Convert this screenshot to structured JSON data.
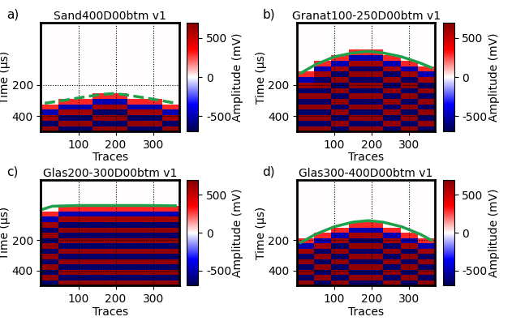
{
  "chart_data": [
    {
      "type": "heatmap",
      "title": "Sand400D00btm v1",
      "annotations": [
        "a)"
      ],
      "xlabel": "Traces",
      "ylabel": "Time (μs)",
      "xlim": [
        0,
        370
      ],
      "ylim": [
        500,
        -200
      ],
      "xticks": [
        100,
        200,
        300
      ],
      "yticks": [
        200,
        400
      ],
      "grid": true,
      "x_edges": [
        0,
        46,
        92,
        139,
        185,
        231,
        277,
        324,
        370
      ],
      "y_edges": [
        -200,
        -165,
        -130,
        -95,
        -60,
        -25,
        10,
        45,
        80,
        115,
        150,
        185,
        220,
        255,
        290,
        325,
        360,
        395,
        430,
        465,
        500
      ],
      "cells": [
        [
          0,
          0,
          0,
          0,
          0,
          0,
          0,
          0
        ],
        [
          0,
          0,
          0,
          0,
          0,
          0,
          0,
          0
        ],
        [
          0,
          0,
          0,
          0,
          0,
          0,
          0,
          0
        ],
        [
          0,
          0,
          0,
          0,
          0,
          0,
          0,
          0
        ],
        [
          0,
          0,
          0,
          0,
          0,
          0,
          0,
          0
        ],
        [
          0,
          0,
          0,
          0,
          0,
          0,
          0,
          0
        ],
        [
          0,
          0,
          0,
          0,
          0,
          0,
          0,
          0
        ],
        [
          0,
          0,
          0,
          0,
          0,
          0,
          0,
          0
        ],
        [
          0,
          0,
          0,
          0,
          0,
          0,
          0,
          0
        ],
        [
          0,
          0,
          0,
          0,
          0,
          0,
          0,
          0
        ],
        [
          0,
          0,
          0,
          0,
          0,
          0,
          0,
          0
        ],
        [
          0,
          0,
          0,
          0,
          0,
          0,
          0,
          0
        ],
        [
          0,
          0,
          0,
          0,
          0,
          0,
          0,
          0
        ],
        [
          0,
          0,
          0,
          300,
          300,
          0,
          0,
          0
        ],
        [
          0,
          300,
          300,
          -500,
          -500,
          300,
          300,
          0
        ],
        [
          300,
          -500,
          -500,
          600,
          600,
          -500,
          -500,
          300
        ],
        [
          -500,
          600,
          600,
          -650,
          -650,
          600,
          600,
          -500
        ],
        [
          600,
          -650,
          -650,
          650,
          650,
          -650,
          -650,
          600
        ],
        [
          -650,
          650,
          650,
          -650,
          -650,
          650,
          650,
          -650
        ],
        [
          650,
          -650,
          -650,
          650,
          650,
          -650,
          -650,
          650
        ]
      ],
      "colorbar": {
        "label": "Amplitude (mV)",
        "range": [
          -700,
          700
        ],
        "ticks": [
          -500,
          0,
          500
        ]
      },
      "series": [
        {
          "type": "line",
          "color": "#1fa04a",
          "line_style": "dashed",
          "x": [
            10,
            60,
            110,
            160,
            190,
            220,
            270,
            320,
            360
          ],
          "values": [
            318,
            300,
            280,
            262,
            256,
            262,
            280,
            300,
            318
          ]
        }
      ]
    },
    {
      "type": "heatmap",
      "title": "Granat100-250D00btm v1",
      "annotations": [
        "b)"
      ],
      "xlabel": "Traces",
      "ylabel": "Time (μs)",
      "xlim": [
        0,
        370
      ],
      "ylim": [
        500,
        -200
      ],
      "xticks": [
        100,
        200,
        300
      ],
      "yticks": [
        200,
        400
      ],
      "grid": true,
      "x_edges": [
        0,
        46,
        92,
        139,
        185,
        231,
        277,
        324,
        370
      ],
      "y_edges": [
        -200,
        -165,
        -130,
        -95,
        -60,
        -25,
        10,
        45,
        80,
        115,
        150,
        185,
        220,
        255,
        290,
        325,
        360,
        395,
        430,
        465,
        500
      ],
      "cells": [
        [
          0,
          0,
          0,
          0,
          0,
          0,
          0,
          0
        ],
        [
          0,
          0,
          0,
          0,
          0,
          0,
          0,
          0
        ],
        [
          0,
          0,
          0,
          0,
          0,
          0,
          0,
          0
        ],
        [
          0,
          0,
          0,
          0,
          0,
          0,
          0,
          0
        ],
        [
          0,
          0,
          0,
          0,
          0,
          0,
          0,
          0
        ],
        [
          0,
          0,
          0,
          300,
          300,
          0,
          0,
          0
        ],
        [
          0,
          0,
          300,
          -500,
          -500,
          300,
          0,
          0
        ],
        [
          0,
          300,
          -500,
          600,
          600,
          -500,
          300,
          0
        ],
        [
          0,
          -500,
          600,
          -650,
          -650,
          600,
          -500,
          300
        ],
        [
          300,
          600,
          -650,
          650,
          650,
          -650,
          600,
          -500
        ],
        [
          -500,
          -650,
          650,
          -650,
          -650,
          650,
          -650,
          600
        ],
        [
          600,
          650,
          -650,
          650,
          650,
          -650,
          650,
          -650
        ],
        [
          -650,
          -650,
          650,
          -650,
          -650,
          650,
          -650,
          650
        ],
        [
          650,
          650,
          -650,
          650,
          650,
          -650,
          650,
          -650
        ],
        [
          -650,
          -650,
          650,
          -650,
          -650,
          650,
          -650,
          650
        ],
        [
          650,
          650,
          -650,
          650,
          650,
          -650,
          650,
          -650
        ],
        [
          -650,
          -650,
          650,
          -650,
          -650,
          650,
          -650,
          650
        ],
        [
          650,
          650,
          -650,
          650,
          650,
          -650,
          650,
          -650
        ],
        [
          -650,
          -650,
          650,
          -650,
          -650,
          650,
          -650,
          650
        ],
        [
          650,
          650,
          -650,
          650,
          650,
          -650,
          650,
          -650
        ]
      ],
      "colorbar": {
        "label": "Amplitude (mV)",
        "range": [
          -700,
          700
        ],
        "ticks": [
          -500,
          0,
          500
        ]
      },
      "series": [
        {
          "type": "line",
          "color": "#1fa04a",
          "line_style": "solid",
          "x": [
            10,
            50,
            100,
            150,
            190,
            230,
            280,
            330,
            360
          ],
          "values": [
            125,
            70,
            20,
            -5,
            -15,
            -5,
            20,
            60,
            90
          ]
        }
      ]
    },
    {
      "type": "heatmap",
      "title": "Glas200-300D00btm v1",
      "annotations": [
        "c)"
      ],
      "xlabel": "Traces",
      "ylabel": "Time (μs)",
      "xlim": [
        0,
        370
      ],
      "ylim": [
        500,
        -200
      ],
      "xticks": [
        100,
        200,
        300
      ],
      "yticks": [
        200,
        400
      ],
      "grid": true,
      "x_edges": [
        0,
        46,
        92,
        139,
        185,
        231,
        277,
        324,
        370
      ],
      "y_edges": [
        -200,
        -165,
        -130,
        -95,
        -60,
        -25,
        10,
        45,
        80,
        115,
        150,
        185,
        220,
        255,
        290,
        325,
        360,
        395,
        430,
        465,
        500
      ],
      "cells": [
        [
          0,
          0,
          0,
          0,
          0,
          0,
          0,
          0
        ],
        [
          0,
          0,
          0,
          0,
          0,
          0,
          0,
          0
        ],
        [
          0,
          0,
          0,
          0,
          0,
          0,
          0,
          0
        ],
        [
          0,
          0,
          0,
          0,
          0,
          0,
          0,
          0
        ],
        [
          0,
          0,
          0,
          0,
          0,
          0,
          0,
          0
        ],
        [
          0,
          300,
          300,
          300,
          300,
          300,
          300,
          300
        ],
        [
          300,
          -500,
          -500,
          -500,
          -500,
          -500,
          -500,
          -500
        ],
        [
          -500,
          600,
          600,
          600,
          600,
          600,
          600,
          600
        ],
        [
          600,
          -650,
          -650,
          -650,
          -650,
          -650,
          -650,
          -650
        ],
        [
          -650,
          650,
          650,
          650,
          650,
          650,
          650,
          650
        ],
        [
          650,
          -650,
          -650,
          -650,
          -650,
          -650,
          -650,
          -650
        ],
        [
          -650,
          650,
          650,
          650,
          650,
          650,
          650,
          650
        ],
        [
          650,
          -650,
          -650,
          -650,
          -650,
          -650,
          -650,
          -650
        ],
        [
          -650,
          650,
          650,
          650,
          650,
          650,
          650,
          650
        ],
        [
          650,
          -650,
          -650,
          -650,
          -650,
          -650,
          -650,
          -650
        ],
        [
          -650,
          650,
          650,
          650,
          650,
          650,
          650,
          650
        ],
        [
          650,
          -650,
          -650,
          -650,
          -650,
          -650,
          -650,
          -650
        ],
        [
          -650,
          650,
          650,
          650,
          650,
          650,
          650,
          650
        ],
        [
          650,
          -650,
          -650,
          -650,
          -650,
          -650,
          -650,
          -650
        ],
        [
          -650,
          650,
          650,
          650,
          650,
          650,
          650,
          650
        ]
      ],
      "colorbar": {
        "label": "Amplitude (mV)",
        "range": [
          -700,
          700
        ],
        "ticks": [
          -500,
          0,
          500
        ]
      },
      "series": [
        {
          "type": "line",
          "color": "#1fa04a",
          "line_style": "solid",
          "x": [
            5,
            30,
            100,
            190,
            280,
            360
          ],
          "values": [
            -5,
            -25,
            -30,
            -30,
            -30,
            -28
          ]
        }
      ]
    },
    {
      "type": "heatmap",
      "title": "Glas300-400D00btm v1",
      "annotations": [
        "d)"
      ],
      "xlabel": "Traces",
      "ylabel": "Time (μs)",
      "xlim": [
        0,
        370
      ],
      "ylim": [
        500,
        -200
      ],
      "xticks": [
        100,
        200,
        300
      ],
      "yticks": [
        200,
        400
      ],
      "grid": true,
      "x_edges": [
        0,
        46,
        92,
        139,
        185,
        231,
        277,
        324,
        370
      ],
      "y_edges": [
        -200,
        -165,
        -130,
        -95,
        -60,
        -25,
        10,
        45,
        80,
        115,
        150,
        185,
        220,
        255,
        290,
        325,
        360,
        395,
        430,
        465,
        500
      ],
      "cells": [
        [
          0,
          0,
          0,
          0,
          0,
          0,
          0,
          0
        ],
        [
          0,
          0,
          0,
          0,
          0,
          0,
          0,
          0
        ],
        [
          0,
          0,
          0,
          0,
          0,
          0,
          0,
          0
        ],
        [
          0,
          0,
          0,
          0,
          0,
          0,
          0,
          0
        ],
        [
          0,
          0,
          0,
          0,
          0,
          0,
          0,
          0
        ],
        [
          0,
          0,
          0,
          0,
          0,
          0,
          0,
          0
        ],
        [
          0,
          0,
          0,
          0,
          0,
          0,
          0,
          0
        ],
        [
          0,
          0,
          0,
          0,
          0,
          0,
          0,
          0
        ],
        [
          0,
          0,
          0,
          300,
          300,
          0,
          0,
          0
        ],
        [
          0,
          0,
          300,
          -500,
          -500,
          300,
          0,
          0
        ],
        [
          0,
          300,
          -500,
          600,
          600,
          -500,
          300,
          0
        ],
        [
          300,
          -500,
          600,
          -650,
          -650,
          600,
          -500,
          300
        ],
        [
          -500,
          600,
          -650,
          650,
          650,
          -650,
          600,
          -500
        ],
        [
          600,
          -650,
          650,
          -650,
          -650,
          650,
          -650,
          600
        ],
        [
          -650,
          650,
          -650,
          650,
          650,
          -650,
          650,
          -650
        ],
        [
          650,
          -650,
          650,
          -650,
          -650,
          650,
          -650,
          650
        ],
        [
          -650,
          650,
          -650,
          650,
          650,
          -650,
          650,
          -650
        ],
        [
          650,
          -650,
          650,
          -650,
          -650,
          650,
          -650,
          650
        ],
        [
          -650,
          650,
          -650,
          650,
          650,
          -650,
          650,
          -650
        ],
        [
          650,
          -650,
          650,
          -650,
          -650,
          650,
          -650,
          650
        ]
      ],
      "colorbar": {
        "label": "Amplitude (mV)",
        "range": [
          -700,
          700
        ],
        "ticks": [
          -500,
          0,
          500
        ]
      },
      "series": [
        {
          "type": "line",
          "color": "#1fa04a",
          "line_style": "solid",
          "x": [
            10,
            50,
            100,
            150,
            190,
            230,
            280,
            330,
            360
          ],
          "values": [
            215,
            160,
            110,
            80,
            70,
            80,
            110,
            160,
            200
          ]
        }
      ]
    }
  ]
}
